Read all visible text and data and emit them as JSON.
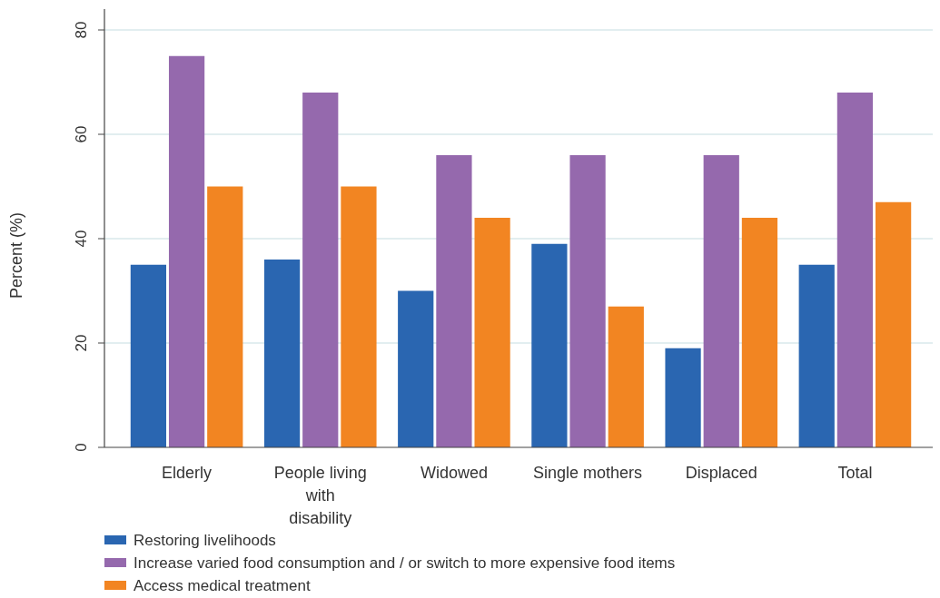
{
  "chart_data": {
    "type": "bar",
    "ylabel": "Percent (%)",
    "categories": [
      "Elderly",
      "People living with disability",
      "Widowed",
      "Single mothers",
      "Displaced",
      "Total"
    ],
    "series": [
      {
        "name": "Restoring livelihoods",
        "color": "#2a66b1",
        "values": [
          35,
          36,
          30,
          39,
          19,
          35
        ]
      },
      {
        "name": "Increase varied food consumption and / or switch to more expensive food items",
        "color": "#9569ad",
        "values": [
          75,
          68,
          56,
          56,
          56,
          68
        ]
      },
      {
        "name": "Access medical treatment",
        "color": "#f28522",
        "values": [
          50,
          50,
          44,
          27,
          44,
          47
        ]
      }
    ],
    "ylim": [
      0,
      84
    ],
    "yticks": [
      0,
      20,
      40,
      60,
      80
    ],
    "grid": "y",
    "legend": "bottom"
  }
}
